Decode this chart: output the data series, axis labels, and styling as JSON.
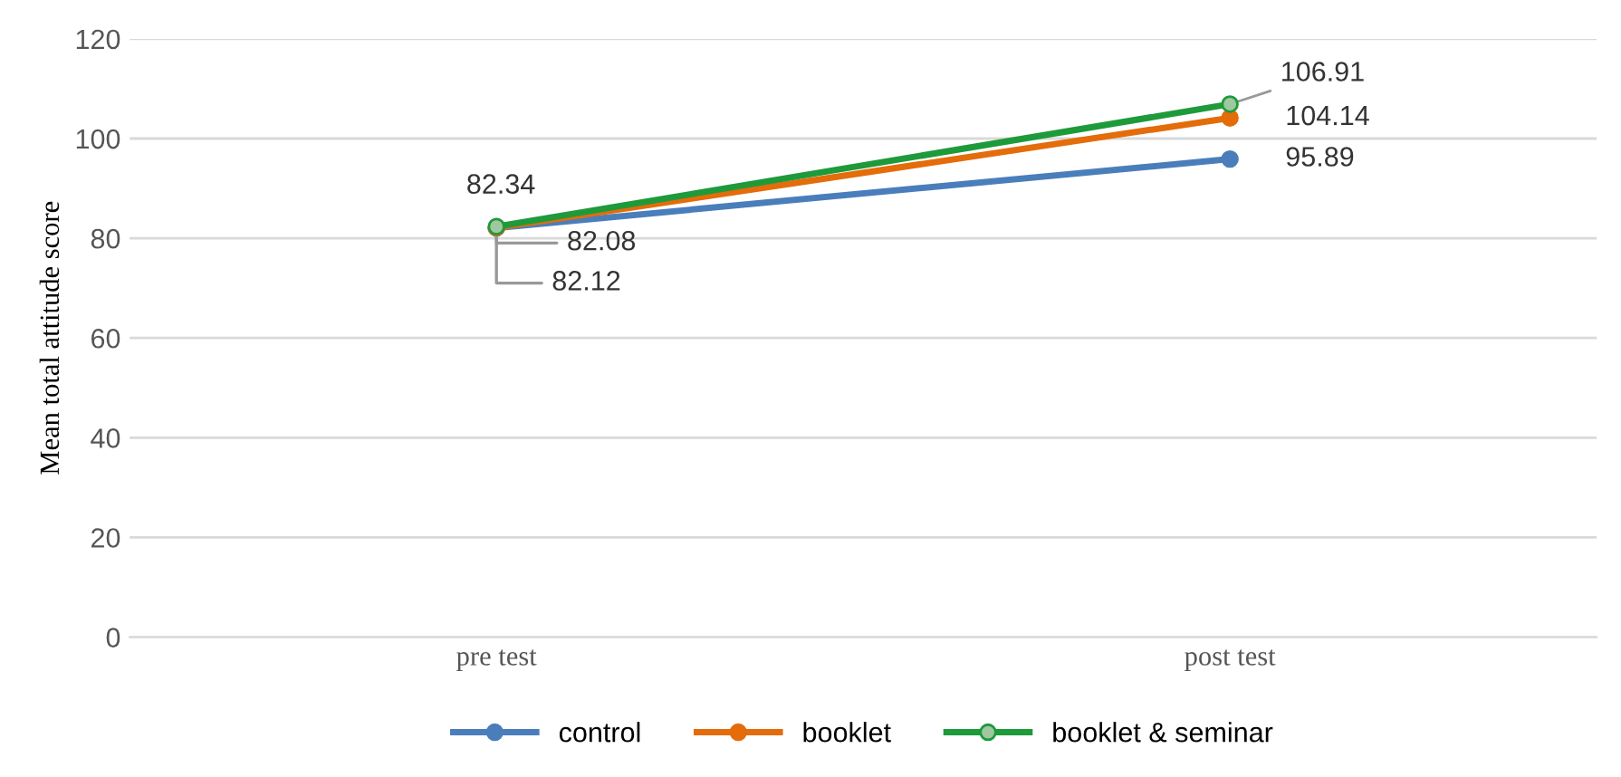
{
  "chart_data": {
    "type": "line",
    "ylabel": "Mean total attitude score",
    "categories": [
      "pre test",
      "post test"
    ],
    "series": [
      {
        "name": "control",
        "color": "#4a7ebb",
        "values": [
          82.08,
          95.89
        ]
      },
      {
        "name": "booklet",
        "color": "#e46c0a",
        "values": [
          82.12,
          104.14
        ]
      },
      {
        "name": "booklet & seminar",
        "color": "#1e9a3a",
        "values": [
          82.34,
          106.91
        ]
      }
    ],
    "ylim": [
      0,
      120
    ],
    "yticks": [
      0,
      20,
      40,
      60,
      80,
      100,
      120
    ],
    "grid": "y",
    "legend": "bottom",
    "marker": "circle",
    "data_labels": true
  }
}
